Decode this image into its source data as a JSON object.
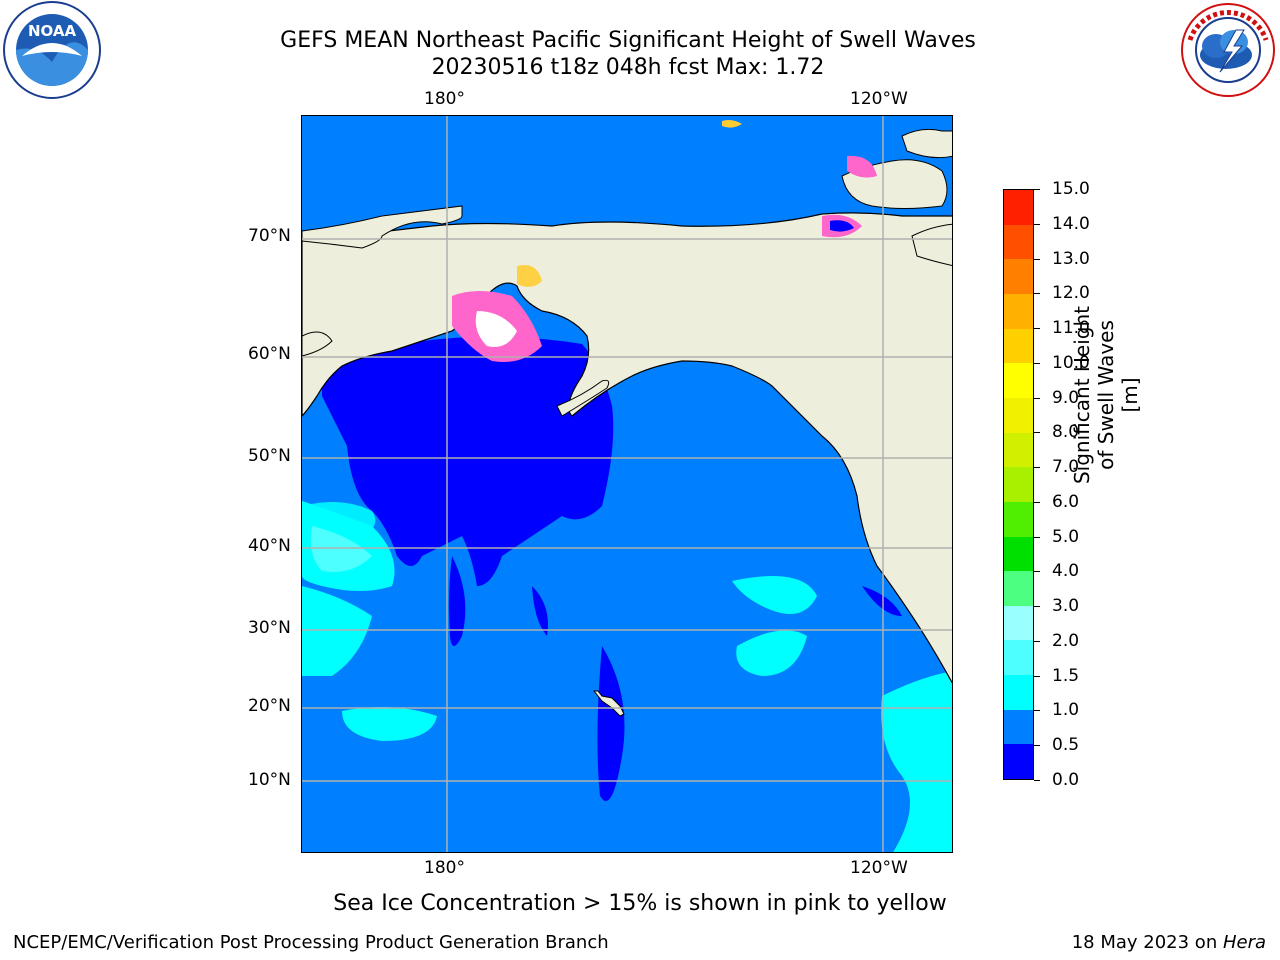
{
  "header": {
    "title_line1": "GEFS MEAN Northeast Pacific Significant Height of Swell Waves",
    "title_line2": "20230516 t18z 048h fcst   Max: 1.72"
  },
  "logos": {
    "left": {
      "name": "noaa-logo",
      "text": "NOAA",
      "ring_text": "NATIONAL OCEANIC AND ATMOSPHERIC ADMINISTRATION · U.S. DEPARTMENT OF COMMERCE"
    },
    "right": {
      "name": "nws-logo",
      "ring_text": "NATIONAL WEATHER SERVICE"
    }
  },
  "map": {
    "lon_labels_top": [
      "180°",
      "120°W"
    ],
    "lon_labels_bottom": [
      "180°",
      "120°W"
    ],
    "lat_labels": [
      "70°N",
      "60°N",
      "50°N",
      "40°N",
      "30°N",
      "20°N",
      "10°N"
    ],
    "colors": {
      "ocean_low": "#0000ff",
      "ocean": "#0080ff",
      "ocean_cyan": "#00ffff",
      "ocean_light": "#4dffff",
      "land": "#eeeedd",
      "grid": "#b0b0b0",
      "ice_pink": "#ff66cc",
      "ice_yellow": "#ffcc33"
    }
  },
  "colorbar": {
    "label": "Significant Height of Swell Waves [m]",
    "ticks": [
      "0.0",
      "0.5",
      "1.0",
      "1.5",
      "2.0",
      "3.0",
      "4.0",
      "5.0",
      "6.0",
      "7.0",
      "8.0",
      "9.0",
      "10.0",
      "11.0",
      "12.0",
      "13.0",
      "14.0",
      "15.0"
    ],
    "colors": [
      "#0000ff",
      "#0080ff",
      "#00ffff",
      "#4dffff",
      "#99ffff",
      "#4dff80",
      "#00e000",
      "#50ee00",
      "#a8f000",
      "#d0f000",
      "#f0f000",
      "#ffff00",
      "#ffd000",
      "#ffb000",
      "#ff8000",
      "#ff5000",
      "#ff2000"
    ]
  },
  "caption": "Sea Ice Concentration > 15% is shown in pink to yellow",
  "footer": {
    "left": "NCEP/EMC/Verification Post Processing Product Generation Branch",
    "right_date": "18 May 2023 on ",
    "right_host": "Hera"
  }
}
